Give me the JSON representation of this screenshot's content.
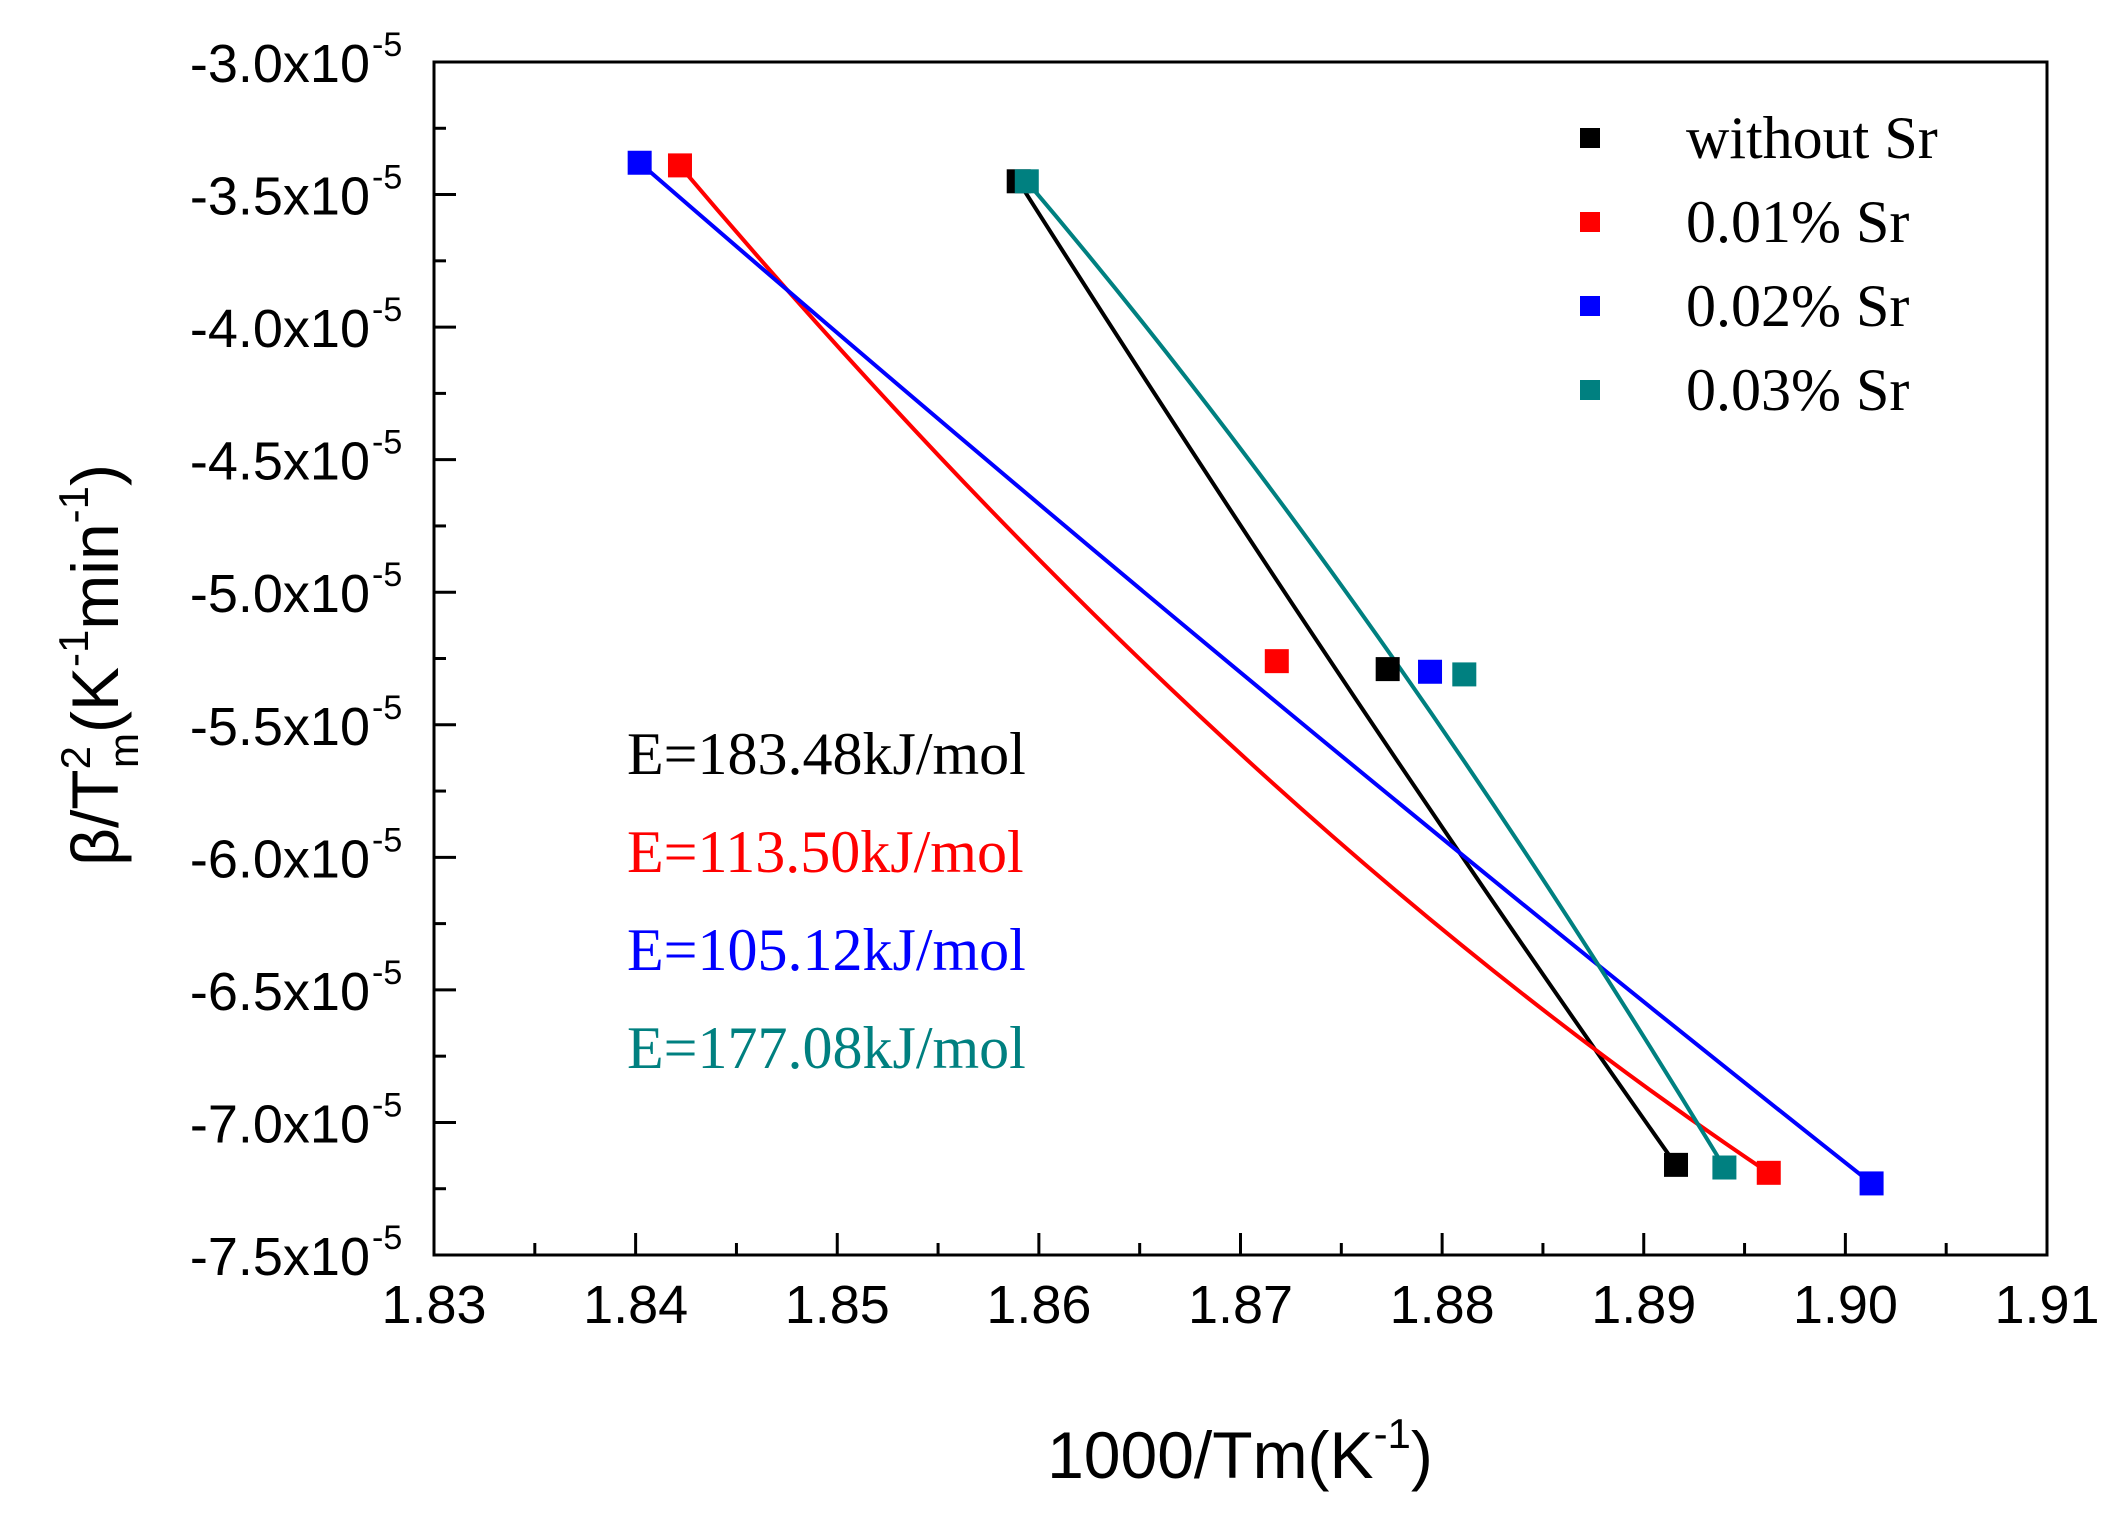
{
  "chart_data": {
    "type": "scatter",
    "xlabel": "1000/Tm(K-1)",
    "xlabel_parts": {
      "main": "1000/Tm(K",
      "sup": "-1",
      "close": ")"
    },
    "ylabel_parts": {
      "beta": "β/T",
      "sup": "2",
      "sub": "m",
      "open": "(K",
      "sup1": "-1",
      "min": "min",
      "sup2": "-1",
      "close": ")"
    },
    "x_ticks": [
      "1.83",
      "1.84",
      "1.85",
      "1.86",
      "1.87",
      "1.88",
      "1.89",
      "1.90",
      "1.91"
    ],
    "y_ticks": [
      {
        "mant": "-3.0x10",
        "exp": "-5"
      },
      {
        "mant": "-3.5x10",
        "exp": "-5"
      },
      {
        "mant": "-4.0x10",
        "exp": "-5"
      },
      {
        "mant": "-4.5x10",
        "exp": "-5"
      },
      {
        "mant": "-5.0x10",
        "exp": "-5"
      },
      {
        "mant": "-5.5x10",
        "exp": "-5"
      },
      {
        "mant": "-6.0x10",
        "exp": "-5"
      },
      {
        "mant": "-6.5x10",
        "exp": "-5"
      },
      {
        "mant": "-7.0x10",
        "exp": "-5"
      },
      {
        "mant": "-7.5x10",
        "exp": "-5"
      }
    ],
    "xlim": [
      1.83,
      1.91
    ],
    "ylim": [
      -7.5e-05,
      -3e-05
    ],
    "legend_position": "top-right",
    "series": [
      {
        "name": "without Sr",
        "color": "#000000",
        "x": [
          1.859,
          1.8773,
          1.8916
        ],
        "y": [
          -3.45e-05,
          -5.29e-05,
          -7.16e-05
        ],
        "fit_x": [
          1.8589,
          1.8916
        ],
        "fit_mid": -5.35e-05
      },
      {
        "name": "0.01% Sr",
        "color": "#ff0000",
        "x": [
          1.8422,
          1.8718,
          1.8962
        ],
        "y": [
          -3.39e-05,
          -5.26e-05,
          -7.19e-05
        ],
        "fit_x": [
          1.8421,
          1.8962
        ],
        "fit_mid": -5.55e-05
      },
      {
        "name": "0.02% Sr",
        "color": "#0000ff",
        "x": [
          1.8402,
          1.8794,
          1.9013
        ],
        "y": [
          -3.38e-05,
          -5.3e-05,
          -7.23e-05
        ],
        "fit_x": [
          1.8402,
          1.9013
        ],
        "fit_mid": -5.35e-05
      },
      {
        "name": "0.03% Sr",
        "color": "#008080",
        "x": [
          1.8594,
          1.8811,
          1.894
        ],
        "y": [
          -3.45e-05,
          -5.31e-05,
          -7.17e-05
        ],
        "fit_x": [
          1.8593,
          1.894
        ],
        "fit_mid": -5.15e-05
      }
    ],
    "annotations": [
      {
        "text": "E=183.48kJ/mol",
        "color": "#000000"
      },
      {
        "text": "E=113.50kJ/mol",
        "color": "#ff0000"
      },
      {
        "text": "E=105.12kJ/mol",
        "color": "#0000ff"
      },
      {
        "text": "E=177.08kJ/mol",
        "color": "#008080"
      }
    ]
  }
}
